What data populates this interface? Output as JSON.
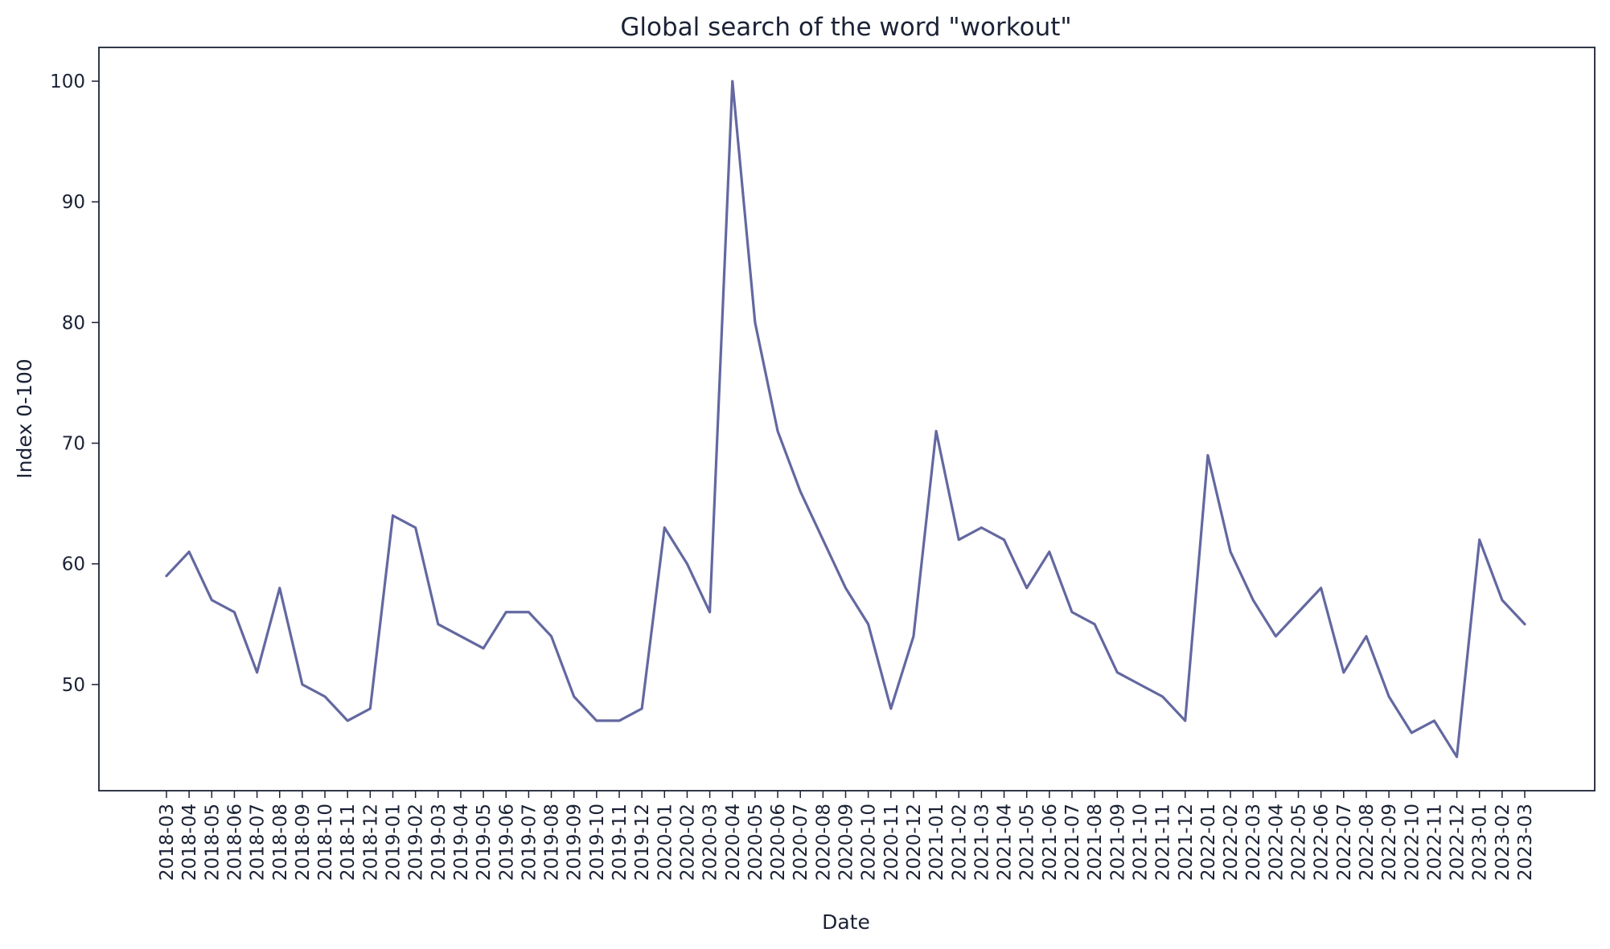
{
  "colors": {
    "line": "#6368a0",
    "text": "#1b2235",
    "background": "#ffffff"
  },
  "chart_data": {
    "type": "line",
    "title": "Global search of the word \"workout\"",
    "xlabel": "Date",
    "ylabel": "Index 0-100",
    "grid": false,
    "legend": "none",
    "ylim": [
      41.2,
      102.8
    ],
    "yticks": [
      50,
      60,
      70,
      80,
      90,
      100
    ],
    "x": [
      "2018-03",
      "2018-04",
      "2018-05",
      "2018-06",
      "2018-07",
      "2018-08",
      "2018-09",
      "2018-10",
      "2018-11",
      "2018-12",
      "2019-01",
      "2019-02",
      "2019-03",
      "2019-04",
      "2019-05",
      "2019-06",
      "2019-07",
      "2019-08",
      "2019-09",
      "2019-10",
      "2019-11",
      "2019-12",
      "2020-01",
      "2020-02",
      "2020-03",
      "2020-04",
      "2020-05",
      "2020-06",
      "2020-07",
      "2020-08",
      "2020-09",
      "2020-10",
      "2020-11",
      "2020-12",
      "2021-01",
      "2021-02",
      "2021-03",
      "2021-04",
      "2021-05",
      "2021-06",
      "2021-07",
      "2021-08",
      "2021-09",
      "2021-10",
      "2021-11",
      "2021-12",
      "2022-01",
      "2022-02",
      "2022-03",
      "2022-04",
      "2022-05",
      "2022-06",
      "2022-07",
      "2022-08",
      "2022-09",
      "2022-10",
      "2022-11",
      "2022-12",
      "2023-01",
      "2023-02",
      "2023-03"
    ],
    "series": [
      {
        "values": [
          59,
          61,
          57,
          56,
          51,
          58,
          50,
          49,
          47,
          48,
          64,
          63,
          55,
          54,
          53,
          56,
          56,
          54,
          49,
          47,
          47,
          48,
          63,
          60,
          56,
          100,
          80,
          71,
          66,
          62,
          58,
          55,
          48,
          54,
          71,
          62,
          63,
          62,
          58,
          61,
          56,
          55,
          51,
          50,
          49,
          47,
          69,
          61,
          57,
          54,
          56,
          58,
          51,
          54,
          49,
          46,
          47,
          44,
          62,
          57,
          55
        ]
      }
    ]
  }
}
